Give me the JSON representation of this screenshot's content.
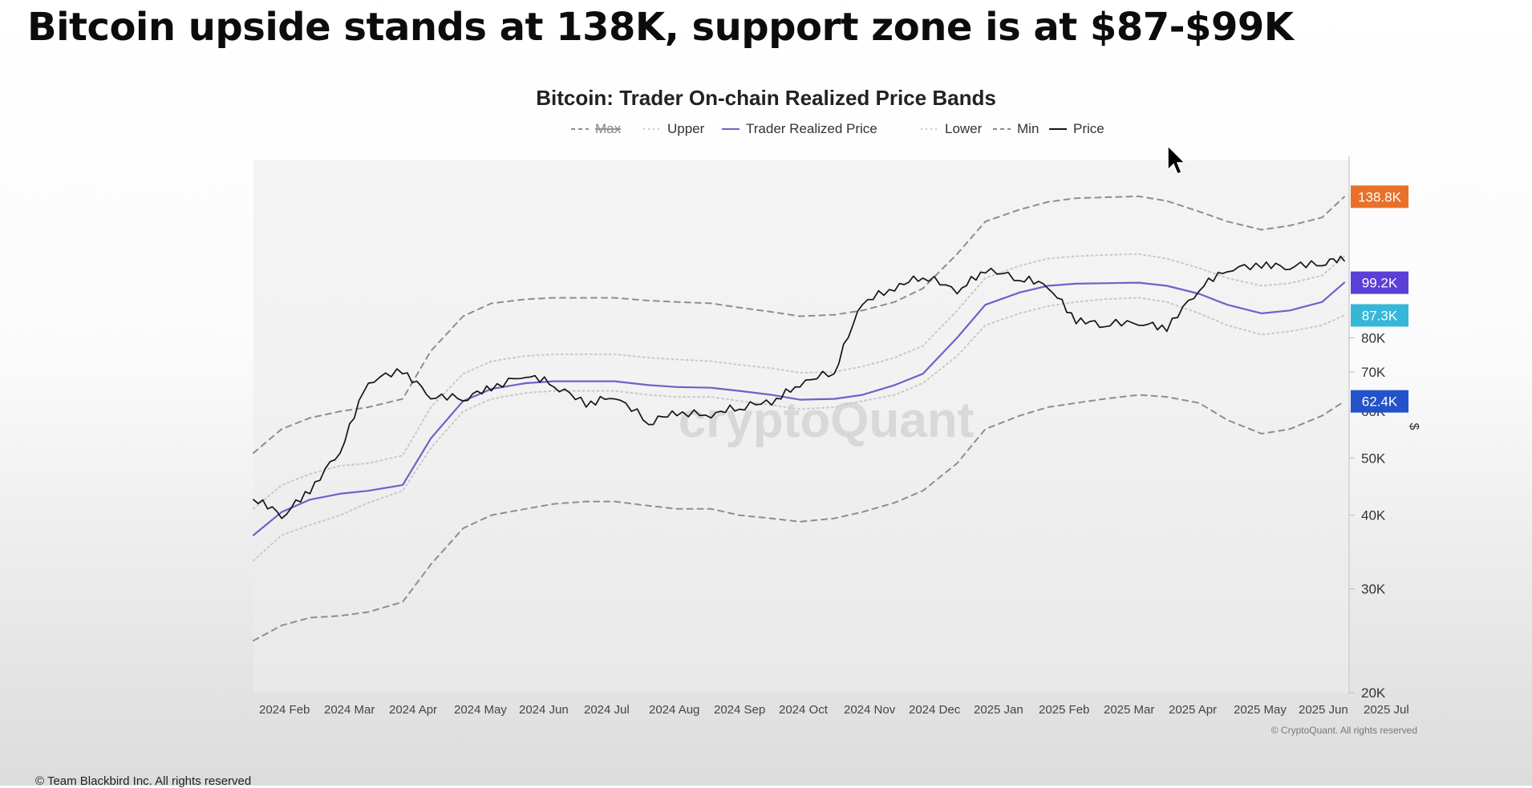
{
  "headline": "Bitcoin upside stands at 138K, support zone is at $87-$99K",
  "footer": "© Team Blackbird Inc. All rights reserved",
  "chart_data": {
    "type": "line",
    "title": "Bitcoin: Trader On-chain Realized Price Bands",
    "watermark": "cryptoQuant",
    "credit": "© CryptoQuant. All rights reserved",
    "y_scale": "log",
    "ylim": [
      20000,
      160000
    ],
    "ylabel": "$",
    "y_ticks": [
      {
        "value": 20000,
        "label": "20K"
      },
      {
        "value": 30000,
        "label": "30K"
      },
      {
        "value": 40000,
        "label": "40K"
      },
      {
        "value": 50000,
        "label": "50K"
      },
      {
        "value": 60000,
        "label": "60K"
      },
      {
        "value": 70000,
        "label": "70K"
      },
      {
        "value": 80000,
        "label": "80K"
      }
    ],
    "x_ticks": [
      "2024 Feb",
      "2024 Mar",
      "2024 Apr",
      "2024 May",
      "2024 Jun",
      "2024 Jul",
      "2024 Aug",
      "2024 Sep",
      "2024 Oct",
      "2024 Nov",
      "2024 Dec",
      "2025 Jan",
      "2025 Feb",
      "2025 Mar",
      "2025 Apr",
      "2025 May",
      "2025 Jun",
      "2025 Jul"
    ],
    "legend": [
      {
        "name": "Max",
        "style": "dash",
        "color": "#9a9a9a"
      },
      {
        "name": "Upper",
        "style": "dot",
        "color": "#c8c8c8"
      },
      {
        "name": "Trader Realized Price",
        "style": "solid",
        "color": "#6b63c9"
      },
      {
        "name": "Lower",
        "style": "dot",
        "color": "#c8c8c8"
      },
      {
        "name": "Min",
        "style": "dash",
        "color": "#9a9a9a"
      },
      {
        "name": "Price",
        "style": "solid",
        "color": "#111111"
      }
    ],
    "end_labels": [
      {
        "label": "138.8K",
        "value": 138800,
        "color": "#e8702a"
      },
      {
        "label": "99.2K",
        "value": 99200,
        "color": "#5b3fd6"
      },
      {
        "label": "87.3K",
        "value": 87300,
        "color": "#37b7d8"
      },
      {
        "label": "62.4K",
        "value": 62400,
        "color": "#2452c9"
      }
    ],
    "x": [
      "2024-01-18",
      "2024-02-01",
      "2024-02-15",
      "2024-03-01",
      "2024-03-15",
      "2024-04-01",
      "2024-04-15",
      "2024-05-01",
      "2024-05-15",
      "2024-06-01",
      "2024-06-15",
      "2024-07-01",
      "2024-07-15",
      "2024-08-01",
      "2024-08-15",
      "2024-09-01",
      "2024-09-15",
      "2024-10-01",
      "2024-10-15",
      "2024-11-01",
      "2024-11-15",
      "2024-12-01",
      "2024-12-15",
      "2025-01-01",
      "2025-01-15",
      "2025-02-01",
      "2025-02-15",
      "2025-03-01",
      "2025-03-15",
      "2025-04-01",
      "2025-04-15",
      "2025-05-01",
      "2025-05-15",
      "2025-06-01",
      "2025-06-15",
      "2025-07-01",
      "2025-07-12"
    ],
    "series": [
      {
        "name": "Max",
        "values": [
          24500,
          26000,
          26800,
          27000,
          27400,
          28500,
          33000,
          38000,
          40000,
          41000,
          41800,
          42200,
          42200,
          41500,
          41000,
          41000,
          40000,
          39500,
          39000,
          39500,
          40500,
          42000,
          44000,
          49000,
          56000,
          59000,
          61000,
          62000,
          63000,
          64000,
          63500,
          62000,
          58000,
          55000,
          56000,
          59000,
          62400
        ]
      },
      {
        "name": "Upper",
        "values": [
          33500,
          37000,
          38500,
          40000,
          42000,
          44000,
          52000,
          60000,
          63000,
          64500,
          65000,
          65000,
          65000,
          64000,
          63500,
          63500,
          62500,
          61500,
          60500,
          61000,
          62500,
          64000,
          67000,
          74500,
          84000,
          88000,
          90500,
          92000,
          93000,
          93500,
          92000,
          88000,
          84000,
          81000,
          82000,
          84000,
          87300
        ]
      },
      {
        "name": "Trader Realized Price",
        "values": [
          37000,
          40500,
          42500,
          43500,
          44000,
          45000,
          54000,
          62500,
          65500,
          67000,
          67500,
          67500,
          67500,
          66500,
          66000,
          65800,
          65000,
          64000,
          62800,
          63000,
          64000,
          66500,
          69500,
          80000,
          91000,
          95500,
          98000,
          98800,
          99000,
          99200,
          98000,
          95000,
          91000,
          88000,
          89000,
          92000,
          99200
        ]
      },
      {
        "name": "Lower",
        "values": [
          41000,
          45000,
          47000,
          48500,
          49000,
          50500,
          61000,
          69500,
          73000,
          74500,
          75000,
          75000,
          75000,
          74000,
          73500,
          73000,
          72000,
          71000,
          69800,
          70000,
          71500,
          74000,
          77500,
          89000,
          101000,
          106000,
          109000,
          110000,
          110500,
          111000,
          109000,
          105000,
          101000,
          98000,
          99000,
          102000,
          110000
        ]
      },
      {
        "name": "Min",
        "values": [
          51000,
          56000,
          58500,
          60000,
          61000,
          63000,
          76000,
          87000,
          91500,
          93000,
          93500,
          93500,
          93500,
          92500,
          92000,
          91500,
          90000,
          88500,
          87000,
          87500,
          89000,
          92000,
          97000,
          111000,
          126000,
          132000,
          136000,
          138000,
          138500,
          139000,
          136500,
          131000,
          126000,
          122000,
          124000,
          128000,
          138800
        ]
      },
      {
        "name": "Price",
        "values": [
          42500,
          39500,
          43500,
          51000,
          67000,
          69500,
          63000,
          62500,
          65000,
          68500,
          66000,
          61000,
          63000,
          57000,
          59000,
          58500,
          60500,
          61500,
          66000,
          69500,
          91000,
          96000,
          101000,
          95000,
          103000,
          100000,
          97000,
          84500,
          83500,
          84000,
          82000,
          96000,
          103500,
          105000,
          104500,
          106000,
          108000
        ]
      }
    ]
  }
}
